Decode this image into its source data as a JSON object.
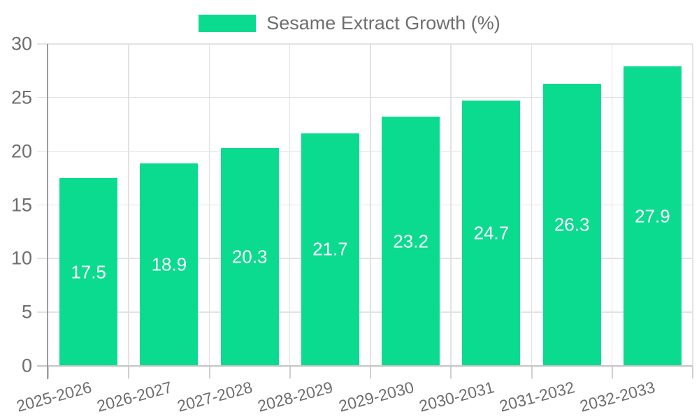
{
  "chart_data": {
    "type": "bar",
    "title": "Sesame Extract Growth (%)",
    "legend": {
      "position": "top-center",
      "entries": [
        "Sesame Extract Growth (%)"
      ]
    },
    "categories": [
      "2025-2026",
      "2026-2027",
      "2027-2028",
      "2028-2029",
      "2029-2030",
      "2030-2031",
      "2031-2032",
      "2032-2033"
    ],
    "values": [
      17.5,
      18.9,
      20.3,
      21.7,
      23.2,
      24.7,
      26.3,
      27.9
    ],
    "xlabel": "",
    "ylabel": "",
    "ylim": [
      0,
      30
    ],
    "yticks": [
      0,
      5,
      10,
      15,
      20,
      25,
      30
    ],
    "grid": "on",
    "value_label_position": "inside-middle",
    "x_tick_rotation_deg": -15,
    "colors": {
      "bar": "#0bdb8f",
      "value_label": "#ffffff",
      "axis_text": "#6e6e6e",
      "gridline": "#e2e2e2",
      "zero_line": "#c4c4c4",
      "y_axis_line": "#9b9b9b",
      "background": "#ffffff"
    }
  }
}
